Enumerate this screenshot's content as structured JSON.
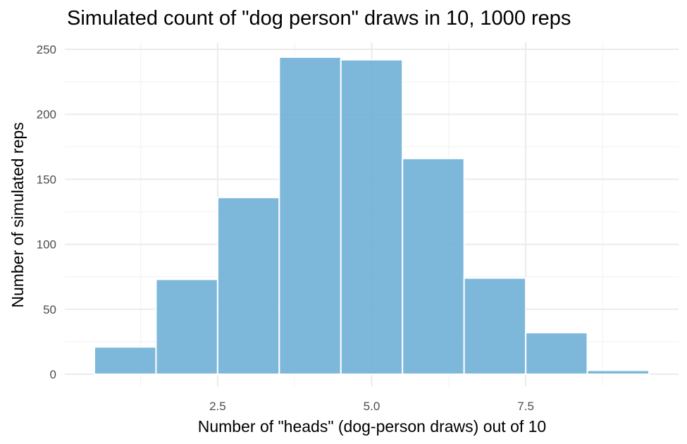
{
  "chart_data": {
    "type": "bar",
    "title": "Simulated count of \"dog person\" draws in 10, 1000 reps",
    "xlabel": "Number of \"heads\" (dog-person draws) out of 10",
    "ylabel": "Number of simulated reps",
    "categories": [
      1,
      2,
      3,
      4,
      5,
      6,
      7,
      8,
      9
    ],
    "values": [
      21,
      73,
      136,
      244,
      242,
      166,
      74,
      32,
      3
    ],
    "xlim": [
      0.5,
      9.5
    ],
    "ylim": [
      0,
      250
    ],
    "x_ticks": [
      "2.5",
      "5.0",
      "7.5"
    ],
    "x_tick_values": [
      2.5,
      5.0,
      7.5
    ],
    "x_minor_tick_values": [
      1.25,
      3.75,
      6.25,
      8.75
    ],
    "y_ticks": [
      "0",
      "50",
      "100",
      "150",
      "200",
      "250"
    ],
    "y_tick_values": [
      0,
      50,
      100,
      150,
      200,
      250
    ],
    "y_minor_tick_values": [
      25,
      75,
      125,
      175,
      225
    ],
    "grid": true,
    "legend": "none",
    "bar_color": "#6baed6"
  }
}
